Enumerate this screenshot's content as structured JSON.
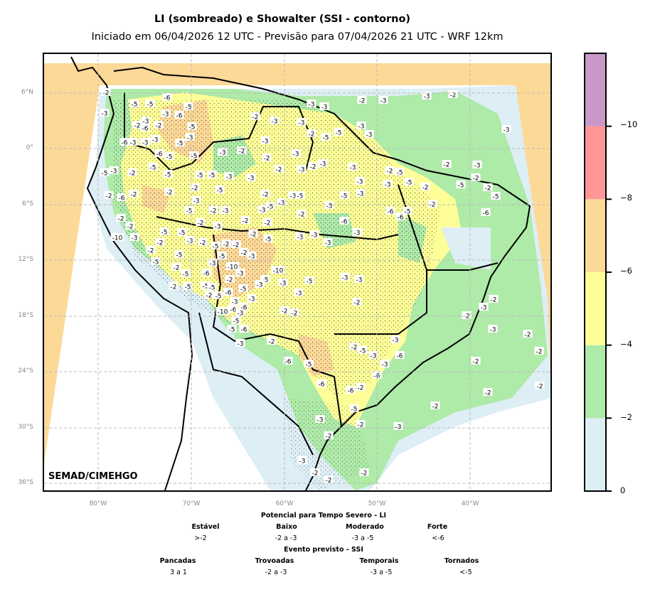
{
  "header": {
    "title": "LI (sombreado) e Showalter (SSI - contorno)",
    "subtitle": "Iniciado em 06/04/2026 12 UTC - Previsão para 07/04/2026 21 UTC - WRF 12km"
  },
  "map": {
    "credit": "SEMAD/CIMEHGO",
    "lat_labels": [
      "6°N",
      "0°",
      "6°S",
      "12°S",
      "18°S",
      "24°S",
      "30°S",
      "36°S"
    ],
    "lon_labels": [
      "80°W",
      "70°W",
      "60°W",
      "50°W",
      "40°W"
    ],
    "ssi_labels": [
      -2,
      -3,
      -5,
      -5,
      -6,
      -5,
      -3,
      -6,
      -3,
      -2,
      -6,
      -2,
      -5,
      -6,
      -3,
      -3,
      -3,
      -3,
      -5,
      -6,
      -5,
      -5,
      -3,
      -2,
      -2,
      -3,
      -3,
      -3,
      -3,
      -3,
      -2,
      -5,
      -5,
      -3,
      -3,
      -2,
      -3,
      -3,
      -2,
      -3,
      -5,
      -3,
      -2,
      -5,
      -5,
      -5,
      -5,
      -3,
      -3,
      -2,
      -2,
      -3,
      -2,
      -3,
      -3,
      -3,
      -2,
      -5,
      -2,
      -3,
      -2,
      -5,
      -2,
      -5,
      -3,
      -3,
      -2,
      -6,
      -2,
      -2,
      -2,
      -3,
      -5,
      -5,
      -2,
      -3,
      -2,
      -3,
      -3,
      -5,
      -3,
      -5,
      -5,
      -3,
      -3,
      -2,
      -2,
      -5,
      -6,
      -2,
      -5,
      -6,
      -6,
      -2,
      -2,
      -2,
      -3,
      -2,
      -2,
      -6,
      -10,
      -3,
      -5,
      -5,
      -2,
      -3,
      -2,
      -5,
      -2,
      -2,
      -2,
      -5,
      -3,
      -3,
      -3,
      -3,
      -2,
      -5,
      -5,
      -2,
      -3,
      -5,
      -2,
      -3,
      -10,
      -5,
      -6,
      -3,
      -2,
      -5,
      -10,
      -2,
      -5,
      -5,
      -5,
      -5,
      -3,
      -3,
      -5,
      -3,
      -3,
      -2,
      -5,
      -6,
      -3,
      -3,
      -10,
      -6,
      -3,
      -6,
      -2,
      -2,
      -3,
      -2,
      -5,
      -5,
      -6,
      -3,
      -2,
      -6,
      -5,
      -6,
      -6,
      -2,
      -2,
      -5,
      -3,
      -3,
      -6,
      -3,
      -6,
      -5,
      -2,
      -3,
      -2,
      -3,
      -3,
      -2,
      -2,
      -2,
      -2,
      -2,
      -2,
      -2,
      -2,
      -2,
      -3,
      -3,
      -2,
      -2
    ]
  },
  "colorbar": {
    "colors": [
      "#ddeef5",
      "#aeeaa8",
      "#fefe99",
      "#fdd998",
      "#fe9696",
      "#c998c9"
    ],
    "ticks": [
      "0",
      "−2",
      "−4",
      "−6",
      "−8",
      "−10"
    ]
  },
  "legend": {
    "li_title": "Potencial para Tempo Severo - LI",
    "li_categories": [
      {
        "label": "Estável",
        "range": ">-2"
      },
      {
        "label": "Baixo",
        "range": "-2 a -3"
      },
      {
        "label": "Moderado",
        "range": "-3 a -5"
      },
      {
        "label": "Forte",
        "range": "<-6"
      }
    ],
    "ssi_title": "Evento previsto - SSI",
    "ssi_categories": [
      {
        "label": "Pancadas",
        "range": "3 a 1"
      },
      {
        "label": "Trovoadas",
        "range": "-2 a -3"
      },
      {
        "label": "Temporais",
        "range": "-3 a -5"
      },
      {
        "label": "Tornados",
        "range": "<-5"
      }
    ]
  }
}
